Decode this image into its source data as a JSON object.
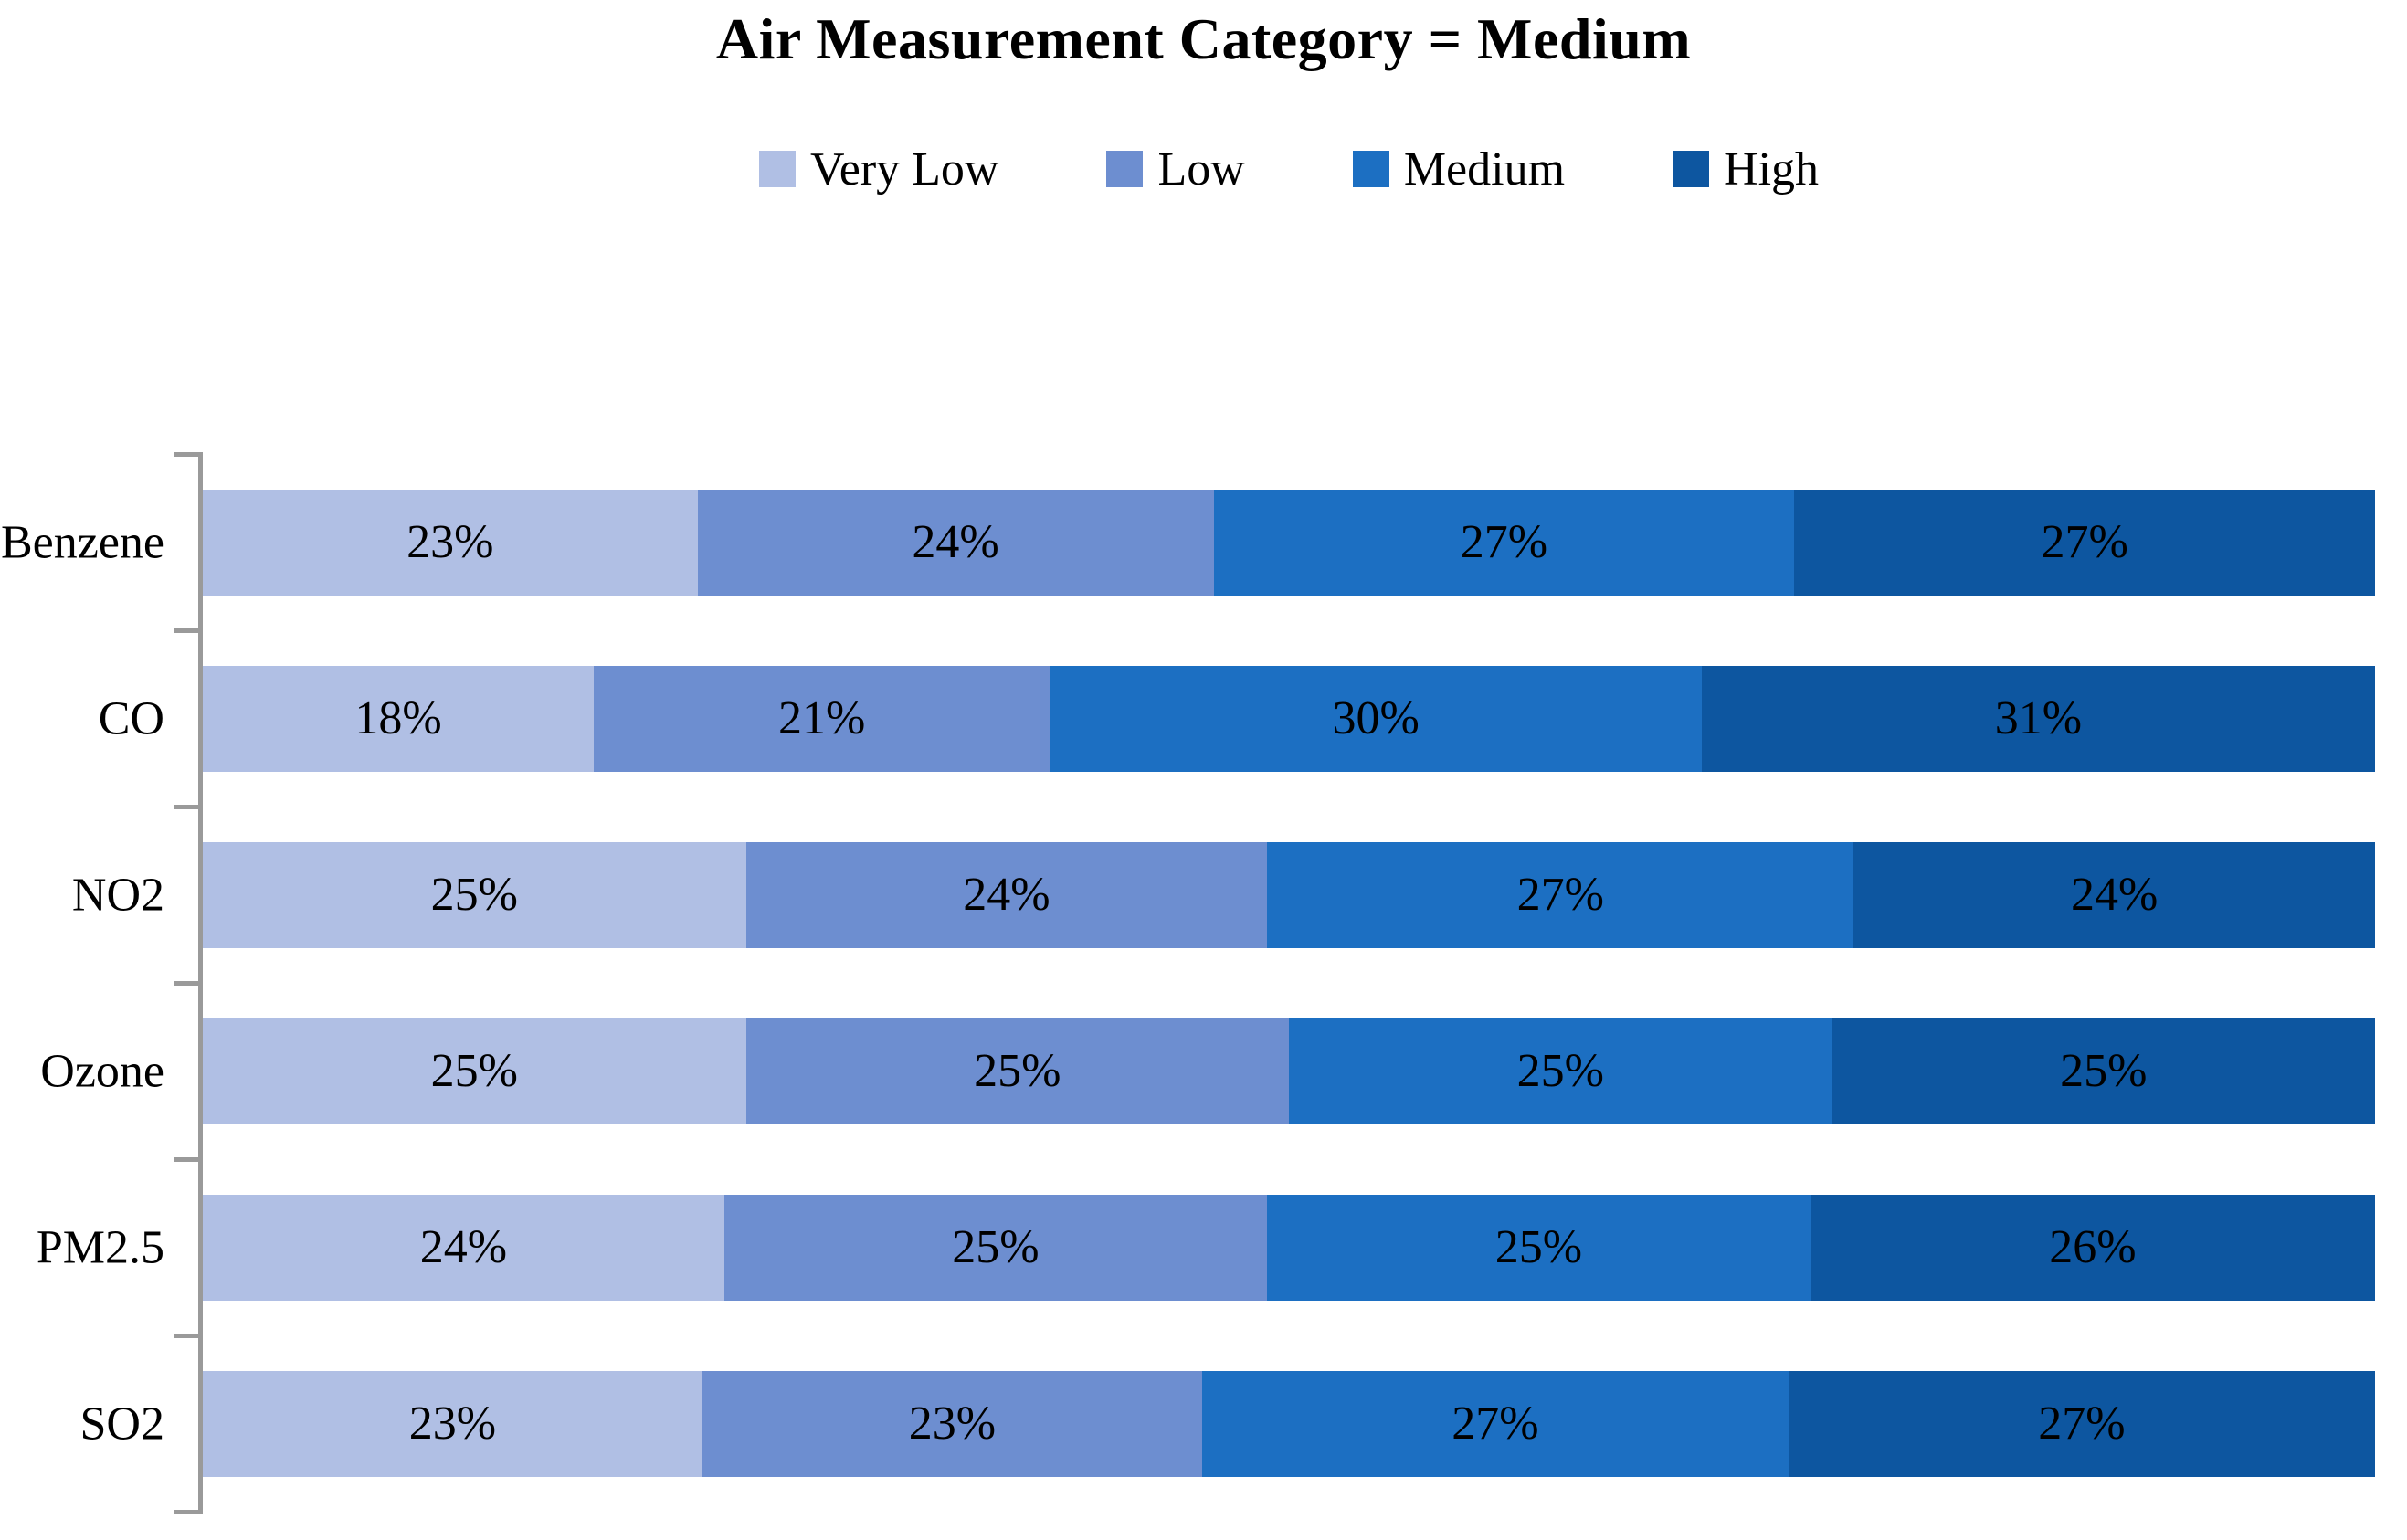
{
  "title": "Air Measurement Category = Medium",
  "chart_data": {
    "type": "bar",
    "variant": "horizontal-100%-stacked",
    "title": "Air Measurement Category = Medium",
    "categories": [
      "Benzene",
      "CO",
      "NO2",
      "Ozone",
      "PM2.5",
      "SO2"
    ],
    "series": [
      {
        "name": "Very Low",
        "color": "#b0bfe4",
        "values": [
          23,
          18,
          25,
          25,
          24,
          23
        ]
      },
      {
        "name": "Low",
        "color": "#6d8ed0",
        "values": [
          24,
          21,
          24,
          25,
          25,
          23
        ]
      },
      {
        "name": "Medium",
        "color": "#1c6fc2",
        "values": [
          27,
          30,
          27,
          25,
          25,
          27
        ]
      },
      {
        "name": "High",
        "color": "#0d56a0",
        "values": [
          27,
          31,
          24,
          25,
          26,
          27
        ]
      }
    ],
    "value_suffix": "%",
    "data_labels": "inside-center",
    "legend_position": "top",
    "grid": false,
    "axis_color": "#9a9a9a",
    "xlabel": "",
    "ylabel": ""
  }
}
